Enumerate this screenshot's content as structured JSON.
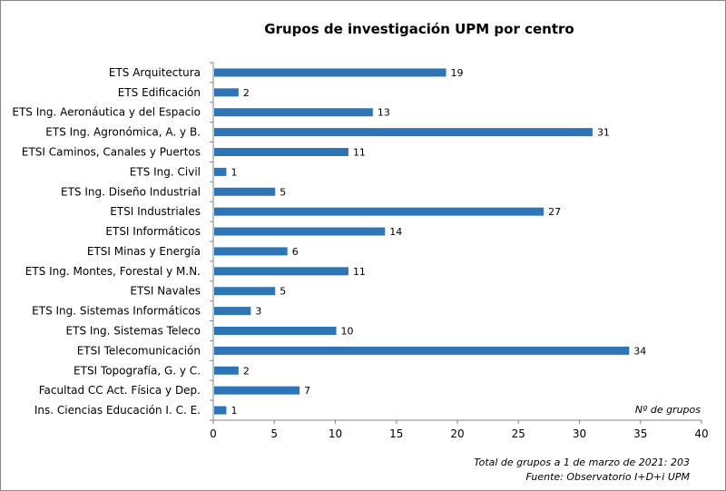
{
  "chart_data": {
    "type": "bar",
    "orientation": "horizontal",
    "title": "Grupos de investigación UPM por centro",
    "xlabel": "Nº de grupos",
    "categories": [
      "ETS Arquitectura",
      "ETS Edificación",
      "ETS Ing. Aeronáutica y del Espacio",
      "ETS Ing. Agronómica, A. y B.",
      "ETSI Caminos, Canales y Puertos",
      "ETS Ing. Civil",
      "ETS Ing. Diseño Industrial",
      "ETSI Industriales",
      "ETSI Informáticos",
      "ETSI Minas y Energía",
      "ETS Ing. Montes, Forestal y M.N.",
      "ETSI Navales",
      "ETS Ing. Sistemas Informáticos",
      "ETS Ing. Sistemas Teleco",
      "ETSI Telecomunicación",
      "ETSI Topografía, G. y C.",
      "Facultad CC Act. Física y Dep.",
      "Ins. Ciencias Educación  I. C. E."
    ],
    "values": [
      19,
      2,
      13,
      31,
      11,
      1,
      5,
      27,
      14,
      6,
      11,
      5,
      3,
      10,
      34,
      2,
      7,
      1
    ],
    "xlim": [
      0,
      40
    ],
    "xticks": [
      0,
      5,
      10,
      15,
      20,
      25,
      30,
      35,
      40
    ],
    "grid": false,
    "legend": "none",
    "bar_color": "#2E75B6",
    "annotations": [
      "Total de grupos a 1 de marzo de  2021:  203",
      "Fuente: Observatorio I+D+i UPM"
    ]
  }
}
